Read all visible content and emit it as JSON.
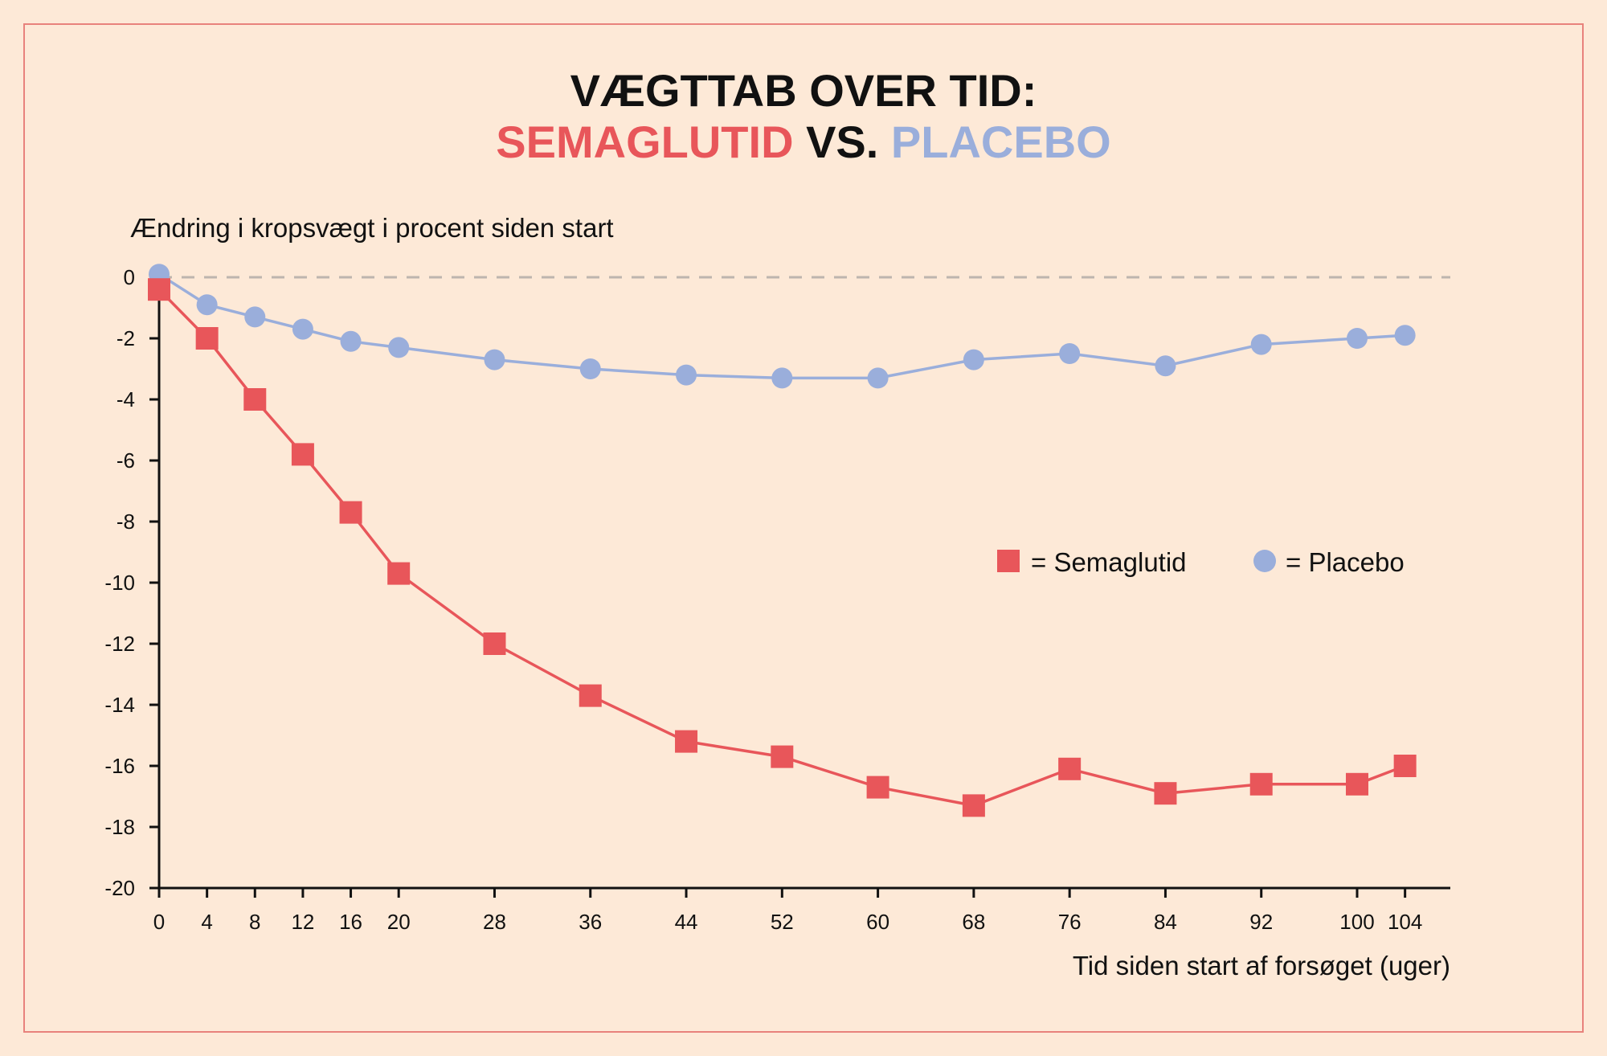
{
  "title_line1": "VÆGTTAB OVER TID:",
  "title_line2": {
    "part1": "SEMAGLUTID",
    "part2": " VS. ",
    "part3": "PLACEBO"
  },
  "colors": {
    "background": "#fde9d7",
    "frame": "#e8827c",
    "semaglutid": "#e8565a",
    "placebo": "#9aaedb",
    "zero_line": "#bdb5ae",
    "axis": "#111111"
  },
  "legend": {
    "semaglutid_label": "= Semaglutid",
    "placebo_label": "= Placebo",
    "position": "right-middle"
  },
  "chart_data": {
    "type": "line",
    "ylabel": "Ændring i kropsvægt i procent siden start",
    "xlabel": "Tid siden start af forsøget (uger)",
    "x": [
      0,
      4,
      8,
      12,
      16,
      20,
      28,
      36,
      44,
      52,
      60,
      68,
      76,
      84,
      92,
      100,
      104
    ],
    "x_ticks": [
      0,
      4,
      8,
      12,
      16,
      20,
      28,
      36,
      44,
      52,
      60,
      68,
      76,
      84,
      92,
      100,
      104
    ],
    "y_ticks": [
      0,
      -2,
      -4,
      -6,
      -8,
      -10,
      -12,
      -14,
      -16,
      -18,
      -20
    ],
    "xlim": [
      0,
      108
    ],
    "ylim": [
      -20,
      0
    ],
    "grid": false,
    "zero_reference_line": true,
    "series": [
      {
        "name": "Semaglutid",
        "marker": "square",
        "values": [
          -0.4,
          -2.0,
          -4.0,
          -5.8,
          -7.7,
          -9.7,
          -12.0,
          -13.7,
          -15.2,
          -15.7,
          -16.7,
          -17.3,
          -16.1,
          -16.9,
          -16.6,
          -16.6,
          -16.0
        ]
      },
      {
        "name": "Placebo",
        "marker": "circle",
        "values": [
          0.1,
          -0.9,
          -1.3,
          -1.7,
          -2.1,
          -2.3,
          -2.7,
          -3.0,
          -3.2,
          -3.3,
          -3.3,
          -2.7,
          -2.5,
          -2.9,
          -2.2,
          -2.0,
          -1.9
        ]
      }
    ]
  }
}
